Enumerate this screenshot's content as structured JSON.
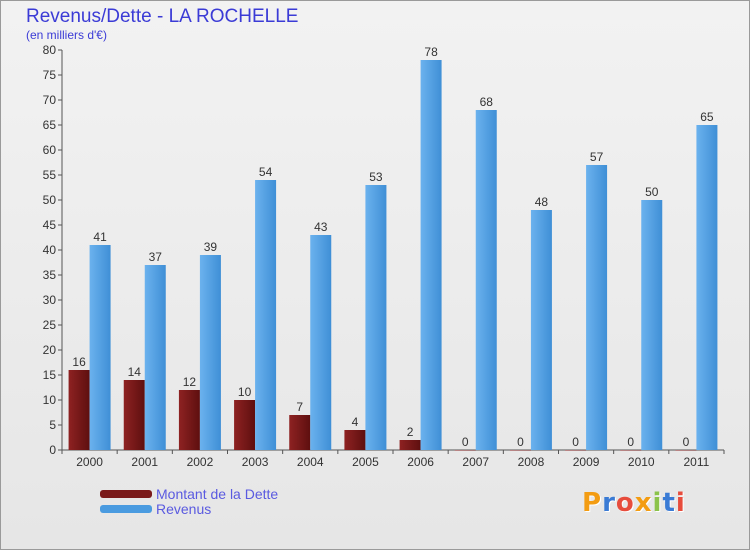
{
  "chart_data": {
    "type": "bar",
    "title": "Revenus/Dette - LA ROCHELLE",
    "subtitle": "(en milliers d'€)",
    "xlabel": "",
    "ylabel": "",
    "ylim": [
      0,
      80
    ],
    "yticks": [
      0,
      5,
      10,
      15,
      20,
      25,
      30,
      35,
      40,
      45,
      50,
      55,
      60,
      65,
      70,
      75,
      80
    ],
    "categories": [
      "2000",
      "2001",
      "2002",
      "2003",
      "2004",
      "2005",
      "2006",
      "2007",
      "2008",
      "2009",
      "2010",
      "2011"
    ],
    "series": [
      {
        "name": "Montant de la Dette",
        "color": "#7a1a1a",
        "values": [
          16,
          14,
          12,
          10,
          7,
          4,
          2,
          0,
          0,
          0,
          0,
          0
        ]
      },
      {
        "name": "Revenus",
        "color": "#4a9be0",
        "values": [
          41,
          37,
          39,
          54,
          43,
          53,
          78,
          68,
          48,
          57,
          50,
          65
        ]
      }
    ],
    "legend_position": "bottom-left",
    "grid": false
  },
  "logo": {
    "text": "Proxiti",
    "colors": [
      "#f39c12",
      "#3a7bd5",
      "#e74c3c",
      "#f39c12",
      "#8bc34a",
      "#3a7bd5",
      "#e74c3c"
    ]
  }
}
